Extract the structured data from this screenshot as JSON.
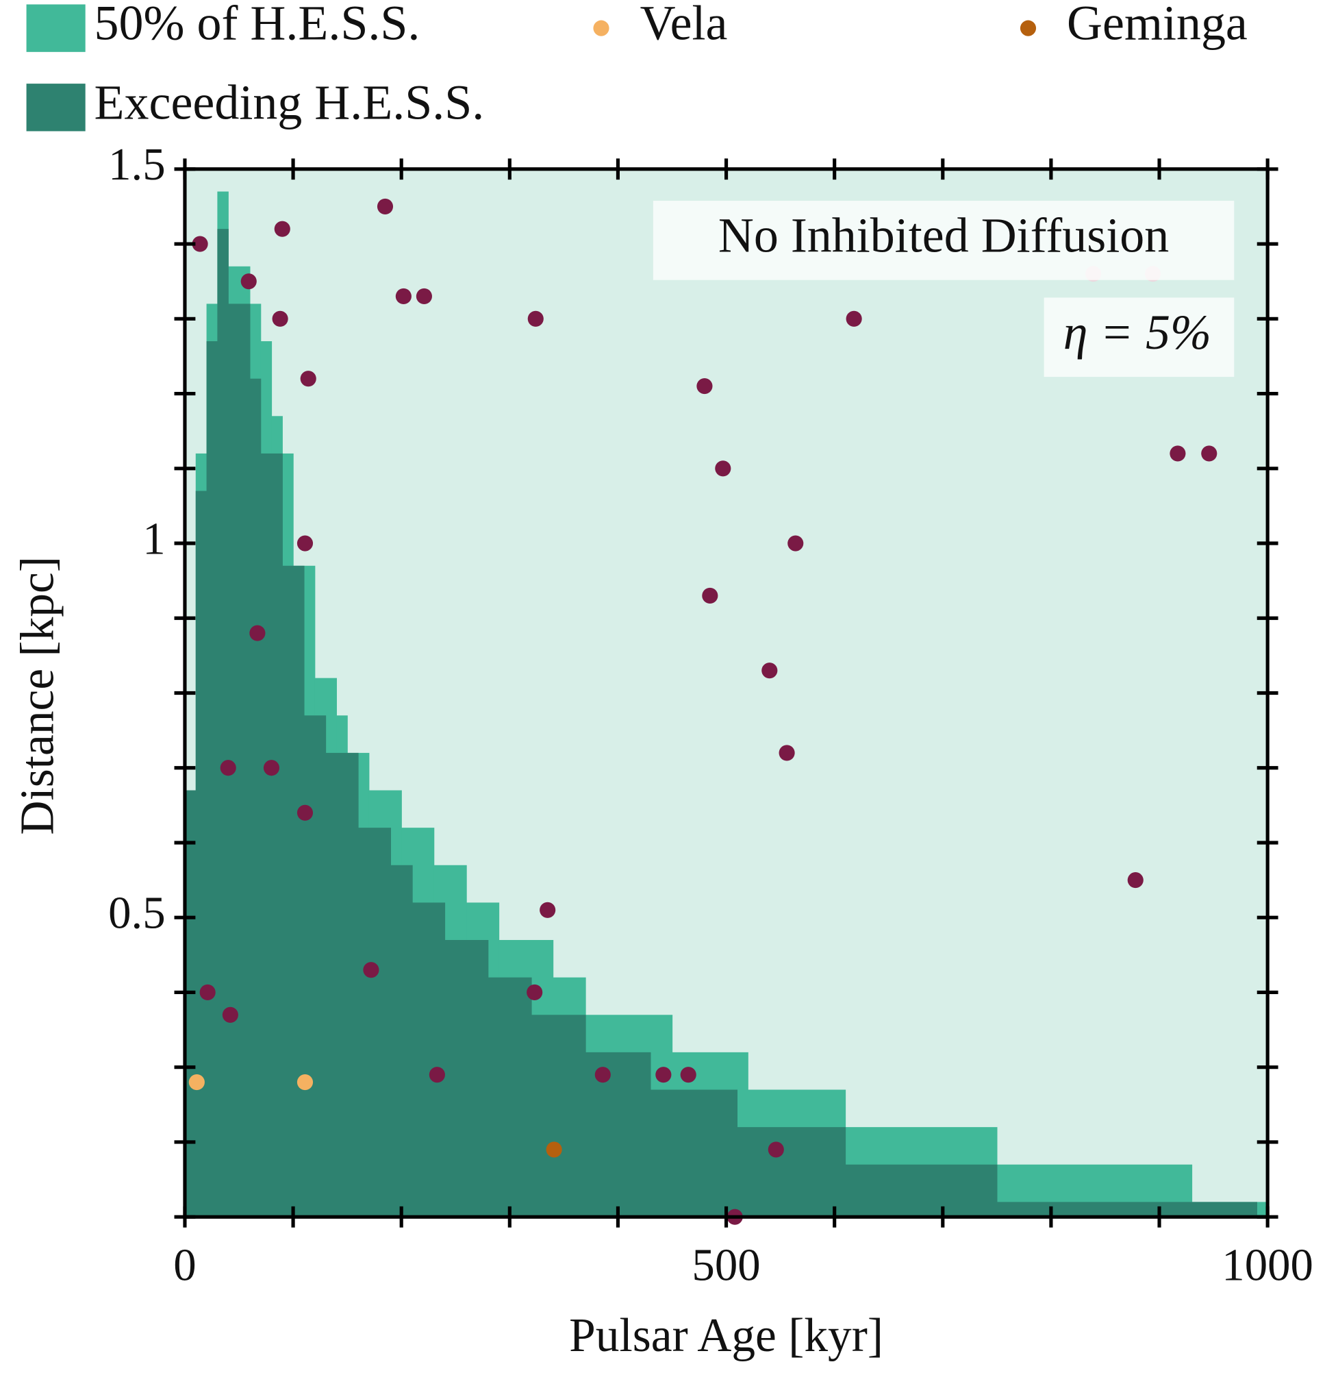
{
  "chart_data": {
    "type": "histogram",
    "x_label": "Pulsar Age [kyr]",
    "y_label": "Distance [kpc]",
    "xlim": [
      0,
      1000
    ],
    "ylim": [
      0.1,
      1.5
    ],
    "xticks": [
      0,
      500,
      1000
    ],
    "xminorticks": [
      100,
      200,
      300,
      400,
      600,
      700,
      800,
      900
    ],
    "yticks": [
      0.5,
      1,
      1.5
    ],
    "yminorticks": [
      0.1,
      0.2,
      0.3,
      0.4,
      0.6,
      0.7,
      0.8,
      0.9,
      1.1,
      1.2,
      1.3,
      1.4
    ],
    "plot_background": "#d8efe8",
    "annotations": [
      "No Inhibited Diffusion",
      "η = 5%"
    ],
    "series": [
      {
        "type": "histogram",
        "name": "50% of H.E.S.S.",
        "color": "#41b999",
        "bins": [
          0,
          10,
          20,
          30,
          40,
          60,
          70,
          80,
          90,
          100,
          120,
          140,
          150,
          170,
          200,
          230,
          260,
          290,
          340,
          370,
          450,
          520,
          610,
          750,
          930,
          990,
          1000
        ],
        "values": [
          0.67,
          1.12,
          1.32,
          1.47,
          1.37,
          1.32,
          1.27,
          1.17,
          1.12,
          0.97,
          0.82,
          0.77,
          0.72,
          0.67,
          0.62,
          0.57,
          0.52,
          0.47,
          0.42,
          0.37,
          0.32,
          0.27,
          0.22,
          0.17,
          0.12,
          0.12
        ]
      },
      {
        "type": "scatter",
        "name": "Vela",
        "color": "#f5b161",
        "x": [
          11,
          111
        ],
        "values": [
          0.28,
          0.28
        ]
      },
      {
        "type": "scatter",
        "name": "Geminga",
        "color": "#b5600e",
        "x": [
          341
        ],
        "values": [
          0.19
        ]
      },
      {
        "type": "histogram",
        "name": "Exceeding H.E.S.S.",
        "color": "#2e8270",
        "bins": [
          0,
          10,
          20,
          30,
          40,
          60,
          70,
          90,
          110,
          130,
          160,
          190,
          210,
          240,
          280,
          320,
          370,
          430,
          510,
          610,
          750,
          990
        ],
        "values": [
          0.67,
          1.07,
          1.27,
          1.42,
          1.32,
          1.22,
          1.12,
          0.97,
          0.77,
          0.72,
          0.62,
          0.57,
          0.52,
          0.47,
          0.42,
          0.37,
          0.32,
          0.27,
          0.22,
          0.17,
          0.12
        ]
      },
      {
        "type": "scatter",
        "color": "#7a1a45",
        "x": [
          14,
          90,
          185,
          59,
          88,
          202,
          221,
          324,
          114,
          618,
          480,
          497,
          111,
          564,
          485,
          67,
          540,
          556,
          40,
          80,
          111,
          878,
          335,
          172,
          21,
          323,
          42,
          233,
          386,
          442,
          465,
          546,
          508,
          917,
          946
        ],
        "values": [
          1.4,
          1.42,
          1.45,
          1.35,
          1.3,
          1.33,
          1.33,
          1.3,
          1.22,
          1.3,
          1.21,
          1.1,
          1.0,
          1.0,
          0.93,
          0.88,
          0.83,
          0.72,
          0.7,
          0.7,
          0.64,
          0.55,
          0.51,
          0.43,
          0.4,
          0.4,
          0.37,
          0.29,
          0.29,
          0.29,
          0.29,
          0.19,
          0.1,
          1.12,
          1.12
        ]
      },
      {
        "type": "scatter",
        "color": "#ead9de",
        "x": [
          839,
          894
        ],
        "values": [
          1.36,
          1.36
        ]
      }
    ]
  }
}
